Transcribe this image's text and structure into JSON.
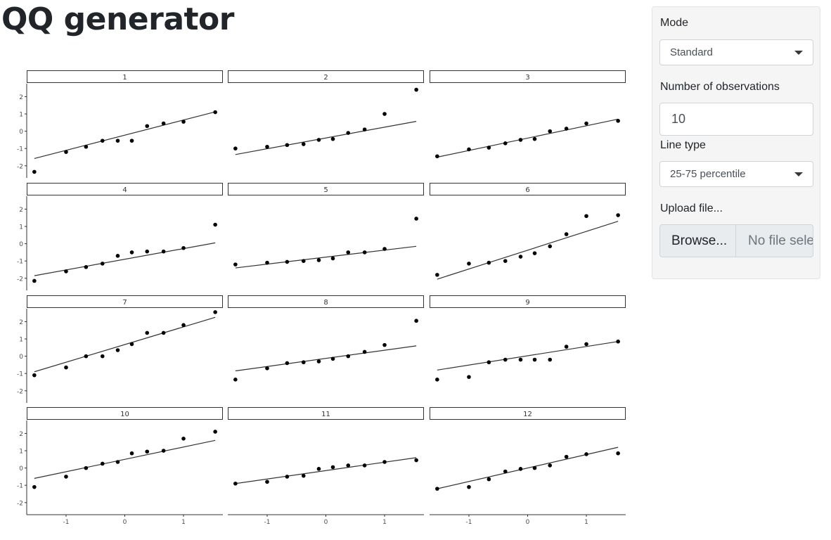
{
  "page": {
    "title": "QQ generator"
  },
  "sidebar": {
    "mode": {
      "label": "Mode",
      "value": "Standard"
    },
    "observations": {
      "label": "Number of observations",
      "value": "10"
    },
    "line_type": {
      "label": "Line type",
      "value": "25-75 percentile"
    },
    "upload": {
      "label": "Upload file...",
      "button_label": "Browse...",
      "placeholder": "No file selected"
    }
  },
  "chart_data": {
    "type": "scatter",
    "facet_grid": {
      "rows": 4,
      "cols": 3
    },
    "xlim": [
      -1.67,
      1.67
    ],
    "ylim": [
      -2.7,
      2.75
    ],
    "x_ticks": [
      -1,
      0,
      1
    ],
    "y_ticks": [
      -2,
      -1,
      0,
      1,
      2
    ],
    "theoretical_quantiles": [
      -1.54,
      -1.0,
      -0.66,
      -0.38,
      -0.12,
      0.12,
      0.38,
      0.66,
      1.0,
      1.54
    ],
    "panels": [
      {
        "label": "1",
        "values": [
          -2.35,
          -1.2,
          -0.9,
          -0.55,
          -0.55,
          -0.55,
          0.3,
          0.45,
          0.55,
          1.1
        ],
        "line": [
          [
            -1.54,
            -1.58
          ],
          [
            1.54,
            1.12
          ]
        ]
      },
      {
        "label": "2",
        "values": [
          -1.0,
          -0.9,
          -0.8,
          -0.75,
          -0.5,
          -0.45,
          -0.1,
          0.1,
          1.0,
          2.4
        ],
        "line": [
          [
            -1.54,
            -1.35
          ],
          [
            1.54,
            0.57
          ]
        ]
      },
      {
        "label": "3",
        "values": [
          -1.45,
          -1.05,
          -0.95,
          -0.7,
          -0.5,
          -0.45,
          0.0,
          0.15,
          0.45,
          0.6
        ],
        "line": [
          [
            -1.54,
            -1.5
          ],
          [
            1.54,
            0.7
          ]
        ]
      },
      {
        "label": "4",
        "values": [
          -2.15,
          -1.6,
          -1.35,
          -1.15,
          -0.7,
          -0.5,
          -0.45,
          -0.45,
          -0.25,
          1.1
        ],
        "line": [
          [
            -1.54,
            -1.85
          ],
          [
            1.54,
            0.05
          ]
        ]
      },
      {
        "label": "5",
        "values": [
          -1.2,
          -1.1,
          -1.05,
          -1.0,
          -0.95,
          -0.85,
          -0.5,
          -0.5,
          -0.3,
          1.45
        ],
        "line": [
          [
            -1.54,
            -1.4
          ],
          [
            1.54,
            -0.15
          ]
        ]
      },
      {
        "label": "6",
        "values": [
          -1.8,
          -1.15,
          -1.1,
          -1.0,
          -0.75,
          -0.55,
          -0.15,
          0.55,
          1.6,
          1.65
        ],
        "line": [
          [
            -1.54,
            -2.05
          ],
          [
            1.54,
            1.3
          ]
        ]
      },
      {
        "label": "7",
        "values": [
          -1.1,
          -0.65,
          0.0,
          0.0,
          0.35,
          0.7,
          1.35,
          1.35,
          1.8,
          2.55
        ],
        "line": [
          [
            -1.54,
            -0.9
          ],
          [
            1.54,
            2.25
          ]
        ]
      },
      {
        "label": "8",
        "values": [
          -1.35,
          -0.7,
          -0.4,
          -0.35,
          -0.3,
          -0.15,
          0.0,
          0.25,
          0.65,
          2.05
        ],
        "line": [
          [
            -1.54,
            -0.85
          ],
          [
            1.54,
            0.6
          ]
        ]
      },
      {
        "label": "9",
        "values": [
          -1.35,
          -1.2,
          -0.35,
          -0.2,
          -0.2,
          -0.2,
          -0.2,
          0.55,
          0.7,
          0.85
        ],
        "line": [
          [
            -1.54,
            -0.8
          ],
          [
            1.54,
            0.85
          ]
        ]
      },
      {
        "label": "10",
        "values": [
          -1.1,
          -0.5,
          0.0,
          0.25,
          0.35,
          0.85,
          0.95,
          1.0,
          1.7,
          2.1
        ],
        "line": [
          [
            -1.54,
            -0.6
          ],
          [
            1.54,
            1.6
          ]
        ]
      },
      {
        "label": "11",
        "values": [
          -0.9,
          -0.8,
          -0.5,
          -0.45,
          -0.05,
          0.05,
          0.15,
          0.15,
          0.35,
          0.45
        ],
        "line": [
          [
            -1.54,
            -0.9
          ],
          [
            1.54,
            0.6
          ]
        ]
      },
      {
        "label": "12",
        "values": [
          -1.2,
          -1.1,
          -0.65,
          -0.2,
          -0.05,
          0.0,
          0.15,
          0.65,
          0.8,
          0.85
        ],
        "line": [
          [
            -1.54,
            -1.2
          ],
          [
            1.54,
            1.2
          ]
        ]
      }
    ]
  }
}
